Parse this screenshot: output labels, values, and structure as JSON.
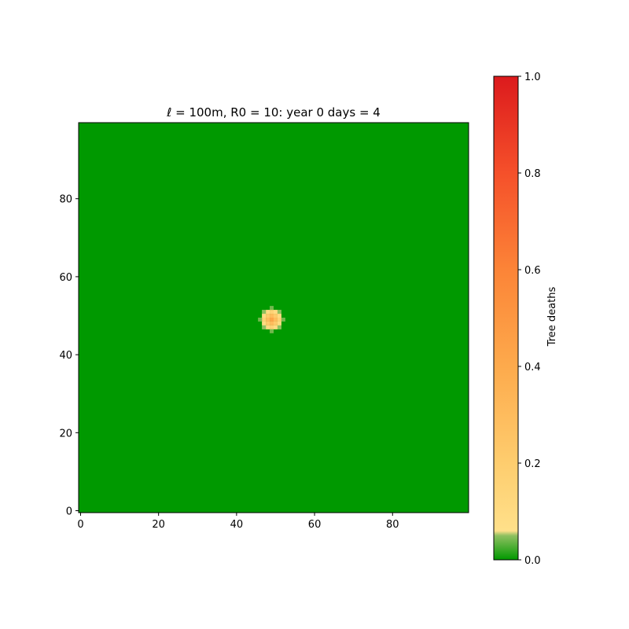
{
  "chart_data": {
    "type": "heatmap",
    "title": "ℓ = 100m, R0 = 10:  year 0 days = 4",
    "xlim": [
      0,
      99
    ],
    "ylim": [
      0,
      99
    ],
    "xticks": [
      "0",
      "20",
      "40",
      "60",
      "80"
    ],
    "yticks": [
      "0",
      "20",
      "40",
      "60",
      "80"
    ],
    "background_value": 0.0,
    "hotspot": {
      "center": [
        49,
        49
      ],
      "cells": [
        {
          "x": 49,
          "y": 49,
          "value": 0.42
        },
        {
          "x": 48,
          "y": 49,
          "value": 0.3
        },
        {
          "x": 50,
          "y": 49,
          "value": 0.3
        },
        {
          "x": 49,
          "y": 48,
          "value": 0.3
        },
        {
          "x": 49,
          "y": 50,
          "value": 0.3
        },
        {
          "x": 48,
          "y": 48,
          "value": 0.22
        },
        {
          "x": 50,
          "y": 48,
          "value": 0.22
        },
        {
          "x": 48,
          "y": 50,
          "value": 0.22
        },
        {
          "x": 50,
          "y": 50,
          "value": 0.22
        },
        {
          "x": 47,
          "y": 49,
          "value": 0.16
        },
        {
          "x": 51,
          "y": 49,
          "value": 0.16
        },
        {
          "x": 49,
          "y": 47,
          "value": 0.16
        },
        {
          "x": 49,
          "y": 51,
          "value": 0.16
        },
        {
          "x": 47,
          "y": 48,
          "value": 0.1
        },
        {
          "x": 47,
          "y": 50,
          "value": 0.1
        },
        {
          "x": 51,
          "y": 48,
          "value": 0.1
        },
        {
          "x": 51,
          "y": 50,
          "value": 0.1
        },
        {
          "x": 48,
          "y": 47,
          "value": 0.1
        },
        {
          "x": 50,
          "y": 47,
          "value": 0.1
        },
        {
          "x": 48,
          "y": 51,
          "value": 0.1
        },
        {
          "x": 50,
          "y": 51,
          "value": 0.1
        },
        {
          "x": 46,
          "y": 49,
          "value": 0.04
        },
        {
          "x": 52,
          "y": 49,
          "value": 0.04
        },
        {
          "x": 49,
          "y": 46,
          "value": 0.04
        },
        {
          "x": 49,
          "y": 52,
          "value": 0.04
        },
        {
          "x": 47,
          "y": 47,
          "value": 0.05
        },
        {
          "x": 51,
          "y": 47,
          "value": 0.05
        },
        {
          "x": 47,
          "y": 51,
          "value": 0.05
        },
        {
          "x": 51,
          "y": 51,
          "value": 0.05
        }
      ]
    },
    "colorbar": {
      "label": "Tree deaths",
      "range": [
        0.0,
        1.0
      ],
      "ticks": [
        "0.0",
        "0.2",
        "0.4",
        "0.6",
        "0.8",
        "1.0"
      ],
      "colormap": [
        {
          "value": 0.0,
          "color": "#009900"
        },
        {
          "value": 0.05,
          "color": "#8fc060"
        },
        {
          "value": 0.06,
          "color": "#ffe08a"
        },
        {
          "value": 0.2,
          "color": "#fecd6e"
        },
        {
          "value": 0.4,
          "color": "#fdaa4c"
        },
        {
          "value": 0.6,
          "color": "#fc8437"
        },
        {
          "value": 0.8,
          "color": "#f5502a"
        },
        {
          "value": 1.0,
          "color": "#dc1a1d"
        }
      ]
    },
    "grid": false
  }
}
